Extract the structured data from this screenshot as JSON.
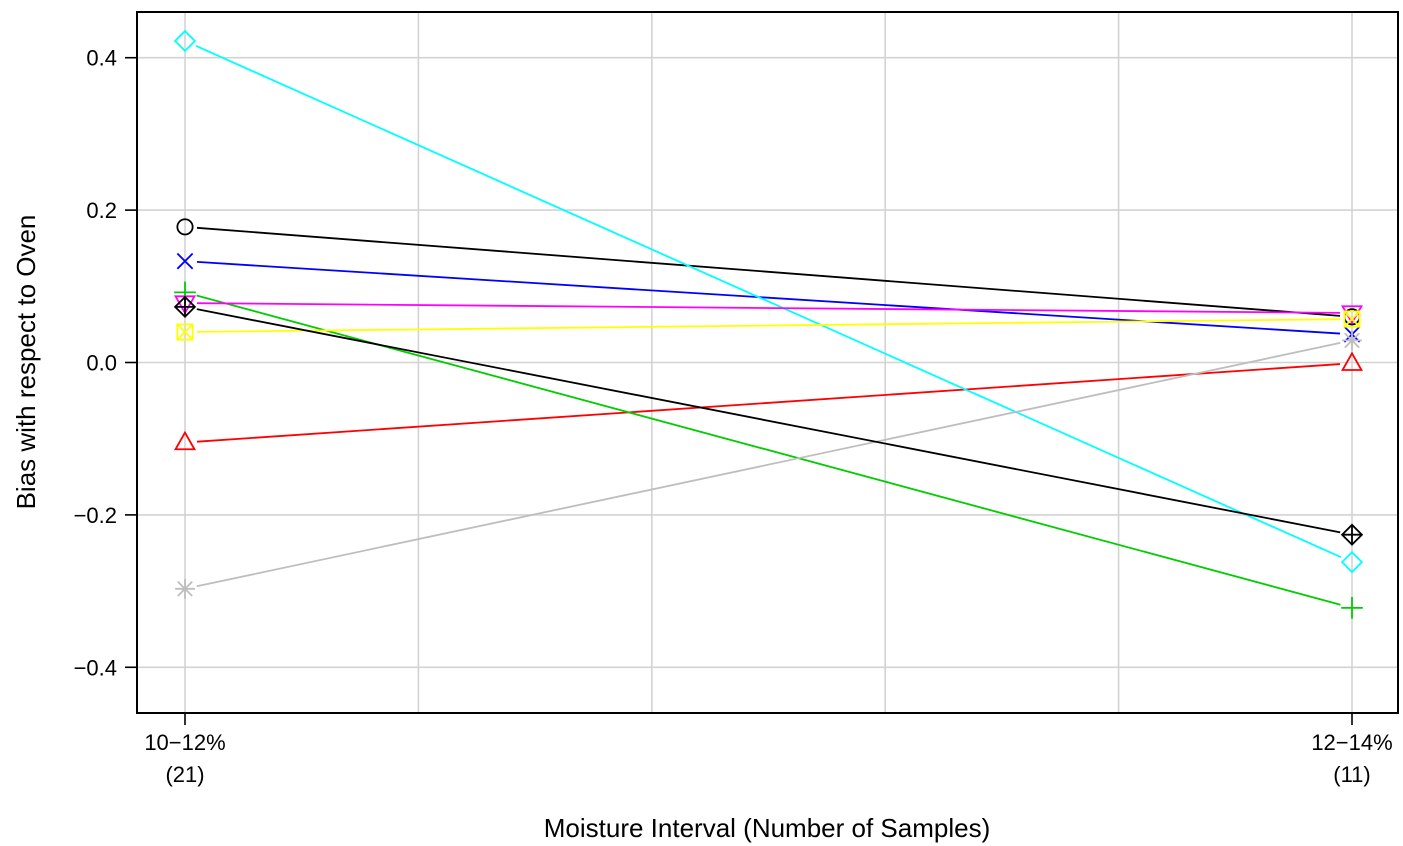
{
  "chart_data": {
    "type": "line",
    "xlabel": "Moisture Interval (Number of Samples)",
    "ylabel": "Bias with respect to Oven",
    "categories": [
      {
        "interval": "10−12%",
        "count": "(21)"
      },
      {
        "interval": "12−14%",
        "count": "(11)"
      }
    ],
    "yticks": [
      "0.4",
      "0.2",
      "0.0",
      "−0.2",
      "−0.4"
    ],
    "ytick_values": [
      0.4,
      0.2,
      0.0,
      -0.2,
      -0.4
    ],
    "ylim": [
      -0.46,
      0.46
    ],
    "grid": true,
    "series": [
      {
        "color": "#000000",
        "marker": "circle",
        "values": [
          0.178,
          0.06
        ]
      },
      {
        "color": "#ff0000",
        "marker": "triangle",
        "values": [
          -0.105,
          -0.001
        ]
      },
      {
        "color": "#00cd00",
        "marker": "plus",
        "values": [
          0.092,
          -0.322
        ]
      },
      {
        "color": "#0000ff",
        "marker": "x",
        "values": [
          0.133,
          0.037
        ]
      },
      {
        "color": "#00ffff",
        "marker": "diamond",
        "values": [
          0.422,
          -0.262
        ]
      },
      {
        "color": "#ff00ff",
        "marker": "triangle-down",
        "values": [
          0.078,
          0.065
        ]
      },
      {
        "color": "#ffff00",
        "marker": "square-x",
        "values": [
          0.04,
          0.057
        ]
      },
      {
        "color": "#bebebe",
        "marker": "asterisk",
        "values": [
          -0.297,
          0.029
        ]
      },
      {
        "color": "#000000",
        "marker": "diamond-plus",
        "values": [
          0.073,
          -0.226
        ]
      }
    ]
  }
}
